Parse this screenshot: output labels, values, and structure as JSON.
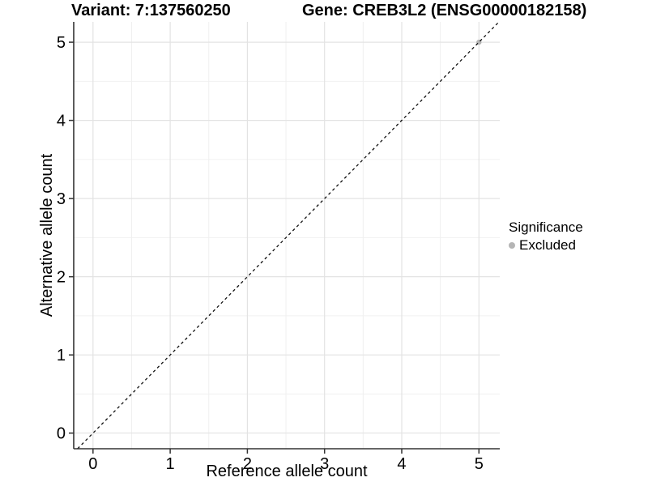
{
  "header": {
    "title_left": "Variant: 7:137560250",
    "title_right": "Gene: CREB3L2 (ENSG00000182158)"
  },
  "legend": {
    "title": "Significance",
    "items": [
      {
        "label": "Excluded",
        "color": "#b5b5b5"
      }
    ]
  },
  "chart_data": {
    "type": "scatter",
    "title": "Variant: 7:137560250    Gene: CREB3L2 (ENSG00000182158)",
    "xlabel": "Reference allele count",
    "ylabel": "Alternative allele count",
    "xlim": [
      -0.25,
      5.27
    ],
    "ylim": [
      -0.2,
      5.26
    ],
    "xticks": [
      0,
      1,
      2,
      3,
      4,
      5
    ],
    "yticks": [
      0,
      1,
      2,
      3,
      4,
      5
    ],
    "minor_step": 0.5,
    "grid": true,
    "legend_position": "right",
    "series": [
      {
        "name": "Excluded",
        "color": "#b5b5b5",
        "points": [
          [
            5,
            5
          ]
        ]
      }
    ],
    "reference_line": {
      "slope": 1,
      "intercept": 0,
      "style": "dashed",
      "color": "#111111"
    },
    "colors": {
      "grid_major": "#e3e3e3",
      "grid_minor": "#f0f0f0",
      "axis": "#333333",
      "text": "#000000"
    }
  }
}
